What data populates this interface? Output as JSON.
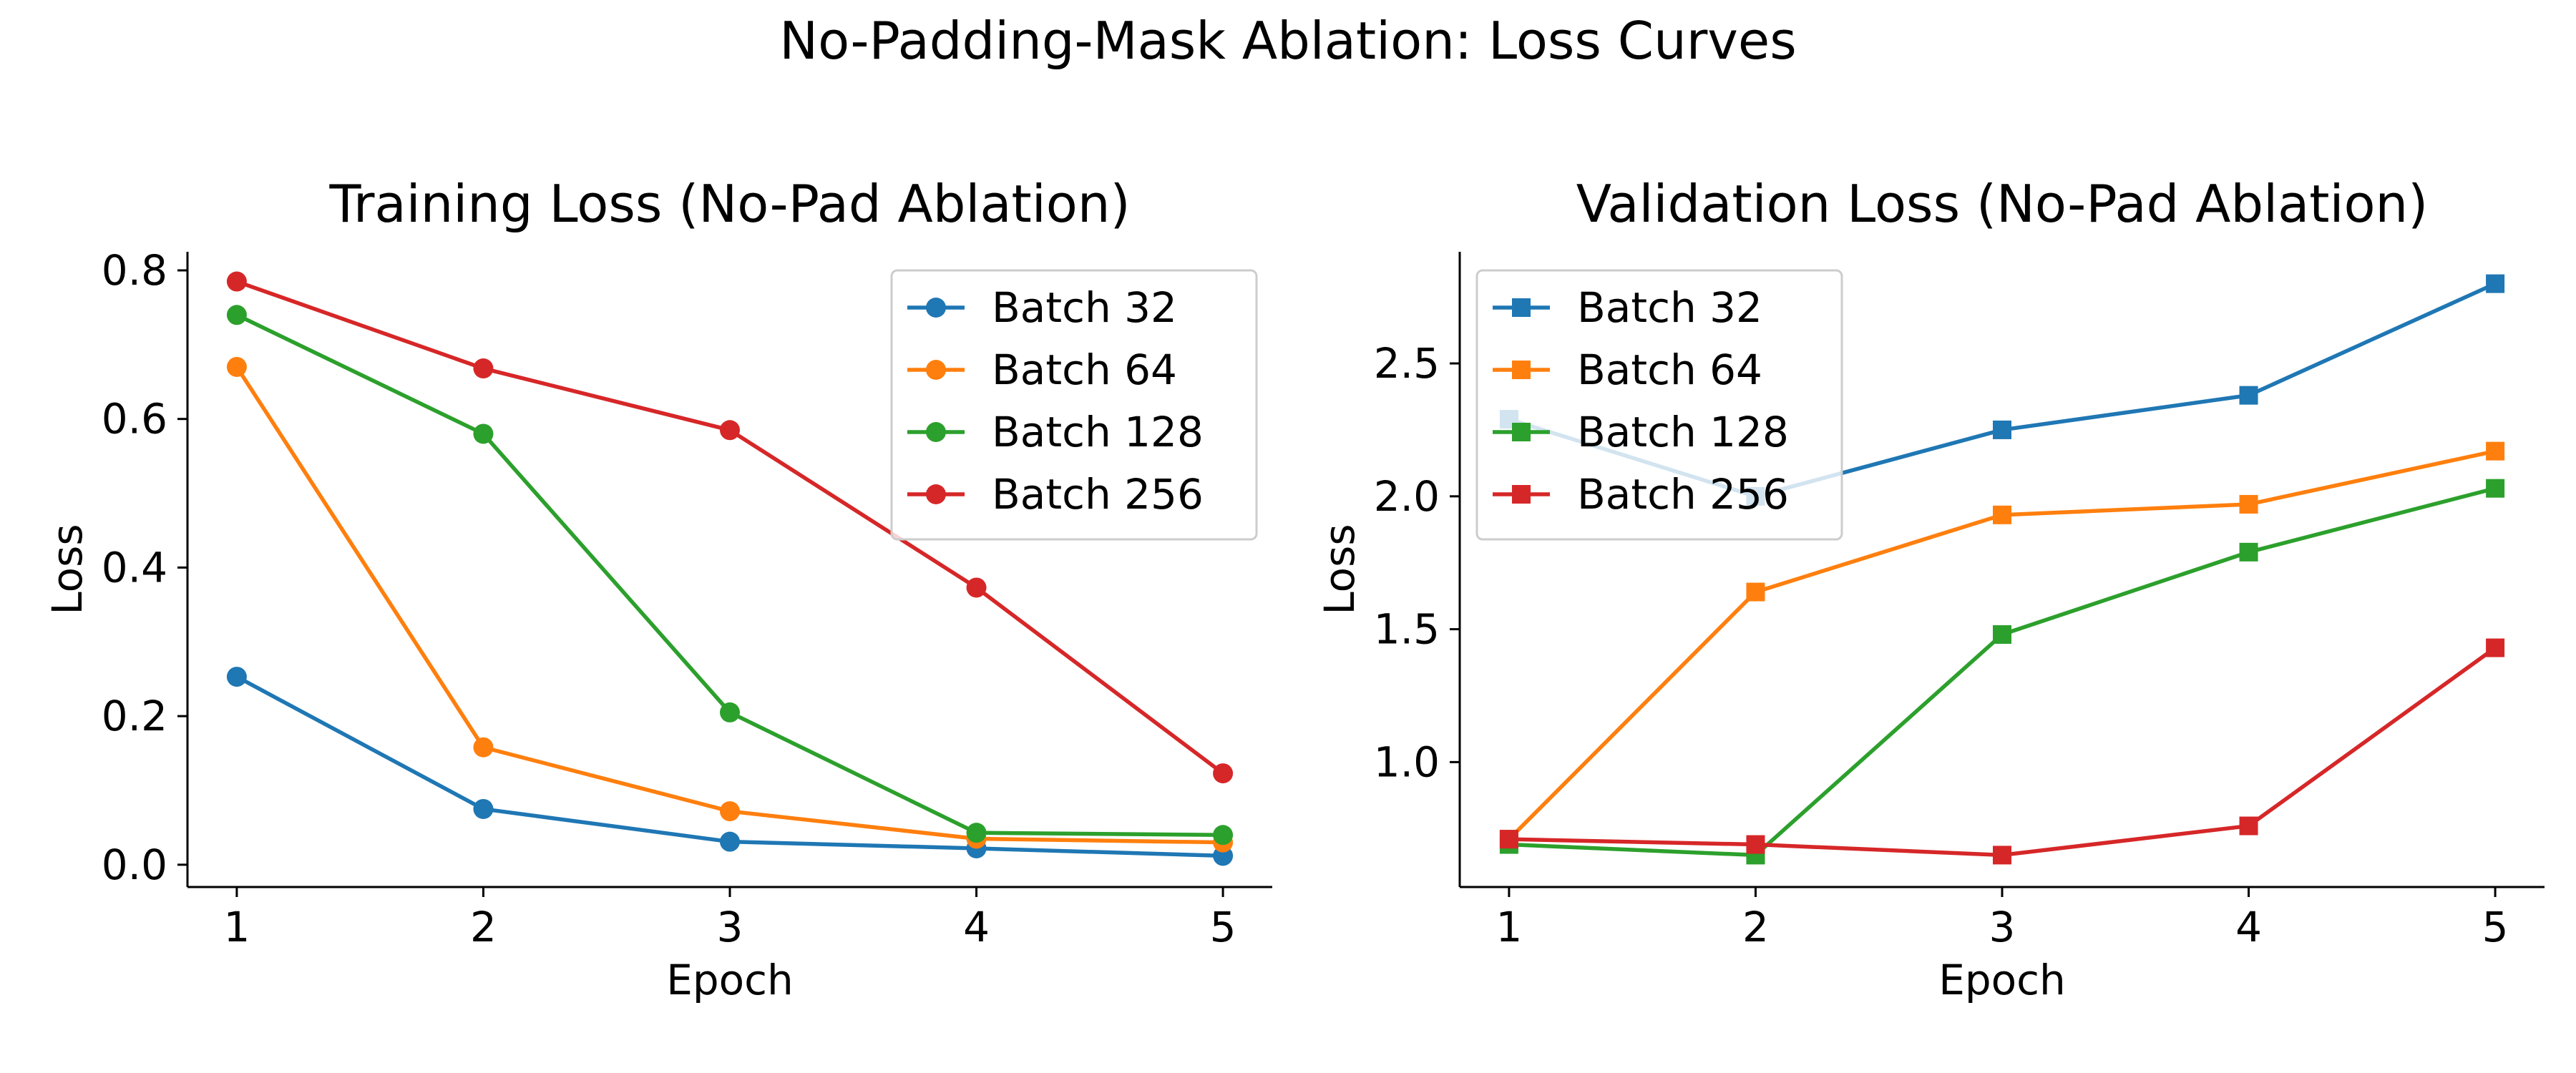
{
  "figure": {
    "suptitle": "No-Padding-Mask Ablation: Loss Curves"
  },
  "chart_data": [
    {
      "type": "line",
      "title": "Training Loss (No-Pad Ablation)",
      "xlabel": "Epoch",
      "ylabel": "Loss",
      "x": [
        1,
        2,
        3,
        4,
        5
      ],
      "xlim": [
        0.8,
        5.2
      ],
      "ylim": [
        -0.03,
        0.825
      ],
      "xticks": [
        "1",
        "2",
        "3",
        "4",
        "5"
      ],
      "yticks": [
        "0.0",
        "0.2",
        "0.4",
        "0.6",
        "0.8"
      ],
      "marker": "circle",
      "legend_position": "upper right",
      "grid": false,
      "series": [
        {
          "name": "Batch 32",
          "color": "#1f77b4",
          "values": [
            0.253,
            0.075,
            0.031,
            0.022,
            0.012
          ]
        },
        {
          "name": "Batch 64",
          "color": "#ff7f0e",
          "values": [
            0.67,
            0.158,
            0.072,
            0.035,
            0.03
          ]
        },
        {
          "name": "Batch 128",
          "color": "#2ca02c",
          "values": [
            0.74,
            0.58,
            0.205,
            0.043,
            0.04
          ]
        },
        {
          "name": "Batch 256",
          "color": "#d62728",
          "values": [
            0.785,
            0.668,
            0.585,
            0.373,
            0.123
          ]
        }
      ]
    },
    {
      "type": "line",
      "title": "Validation Loss (No-Pad Ablation)",
      "xlabel": "Epoch",
      "ylabel": "Loss",
      "x": [
        1,
        2,
        3,
        4,
        5
      ],
      "xlim": [
        0.8,
        5.2
      ],
      "ylim": [
        0.53,
        2.92
      ],
      "xticks": [
        "1",
        "2",
        "3",
        "4",
        "5"
      ],
      "yticks": [
        "1.0",
        "1.5",
        "2.0",
        "2.5"
      ],
      "marker": "square",
      "legend_position": "upper left",
      "grid": false,
      "series": [
        {
          "name": "Batch 32",
          "color": "#1f77b4",
          "values": [
            2.29,
            2.0,
            2.25,
            2.38,
            2.8
          ]
        },
        {
          "name": "Batch 64",
          "color": "#ff7f0e",
          "values": [
            0.71,
            1.64,
            1.93,
            1.97,
            2.17
          ]
        },
        {
          "name": "Batch 128",
          "color": "#2ca02c",
          "values": [
            0.69,
            0.65,
            1.48,
            1.79,
            2.03
          ]
        },
        {
          "name": "Batch 256",
          "color": "#d62728",
          "values": [
            0.71,
            0.69,
            0.65,
            0.76,
            1.43
          ]
        }
      ]
    }
  ]
}
